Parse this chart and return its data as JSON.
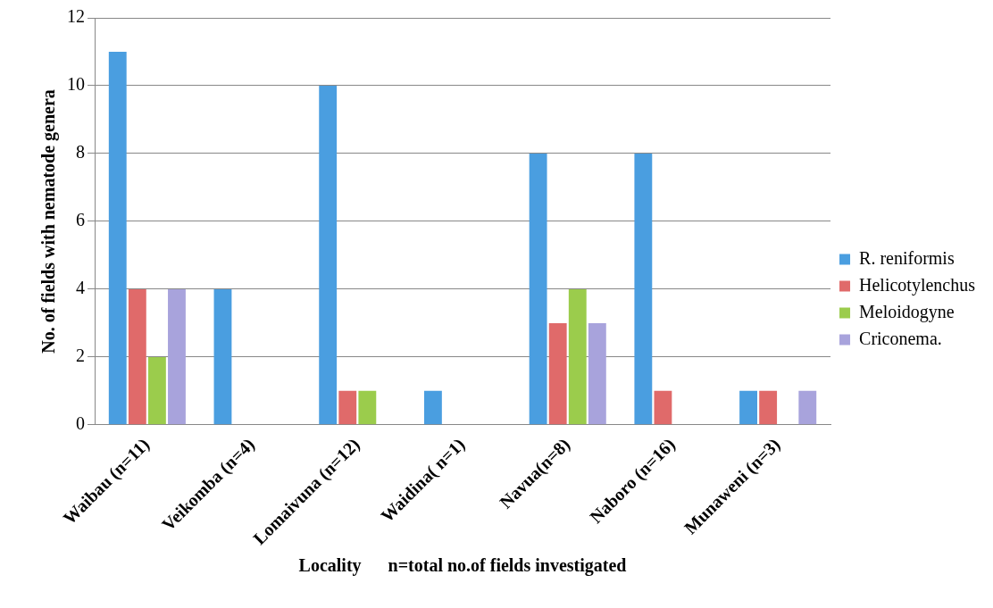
{
  "chart_data": {
    "type": "bar",
    "ylabel": "No. of fields with nematode genera",
    "xlabel": "Locality      n=total no.of fields investigated",
    "categories": [
      "Waibau (n=11)",
      "Veikomba (n=4)",
      "Lomaivuna (n=12)",
      "Waidina( n=1)",
      "Navua(n=8)",
      "Naboro (n=16)",
      "Munaweni (n=3)"
    ],
    "series": [
      {
        "name": "R. reniformis",
        "color": "#4a9ee0",
        "values": [
          11,
          4,
          10,
          1,
          8,
          8,
          1
        ]
      },
      {
        "name": "Helicotylenchus",
        "color": "#e06a6a",
        "values": [
          4,
          0,
          1,
          0,
          3,
          1,
          1
        ]
      },
      {
        "name": "Meloidogyne",
        "color": "#9bcc4c",
        "values": [
          2,
          0,
          1,
          0,
          4,
          0,
          0
        ]
      },
      {
        "name": "Criconema.",
        "color": "#a8a3dc",
        "values": [
          4,
          0,
          0,
          0,
          3,
          0,
          1
        ]
      }
    ],
    "ylim": [
      0,
      12
    ],
    "yticks": [
      0,
      2,
      4,
      6,
      8,
      10,
      12
    ],
    "grid": "y",
    "legend": "right"
  }
}
